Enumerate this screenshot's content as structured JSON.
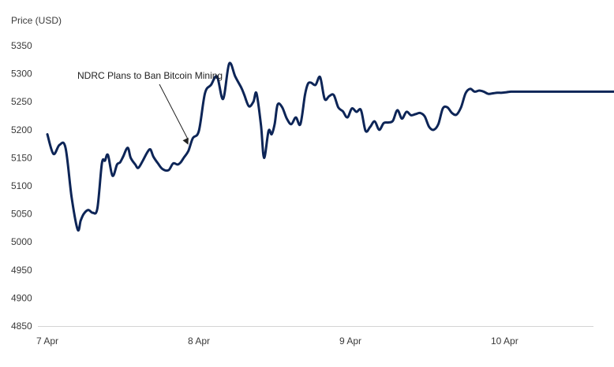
{
  "chart_data": {
    "type": "line",
    "title": "",
    "ylabel": "Price (USD)",
    "xlabel": "",
    "ylim": [
      4850,
      5350
    ],
    "yticks": [
      4850,
      4900,
      4950,
      5000,
      5050,
      5100,
      5150,
      5200,
      5250,
      5300,
      5350
    ],
    "xlim": [
      0,
      3.93
    ],
    "xtick_labels": [
      {
        "label": "7 Apr",
        "day": 0
      },
      {
        "label": "8 Apr",
        "day": 1
      },
      {
        "label": "9 Apr",
        "day": 2
      },
      {
        "label": "10 Apr",
        "day": 3
      }
    ],
    "grid": false,
    "line_color": "#0d2557",
    "annotations": [
      {
        "text": "NDRC Plans to Ban Bitcoin Mining",
        "x": 0.93,
        "y": 5165
      }
    ],
    "series": [
      {
        "x": [
          0.0,
          0.04,
          0.08,
          0.12,
          0.16,
          0.2,
          0.22,
          0.24,
          0.27,
          0.3,
          0.33,
          0.36,
          0.38,
          0.4,
          0.43,
          0.46,
          0.48,
          0.5,
          0.53,
          0.55,
          0.58,
          0.6,
          0.63,
          0.66,
          0.68,
          0.7,
          0.73,
          0.76,
          0.8,
          0.83,
          0.86,
          0.88,
          0.9,
          0.93,
          0.96,
          1.0,
          1.04,
          1.08,
          1.12,
          1.16,
          1.2,
          1.24,
          1.28,
          1.3,
          1.33,
          1.36,
          1.38,
          1.41,
          1.43,
          1.46,
          1.48,
          1.5,
          1.52,
          1.55,
          1.58,
          1.61,
          1.64,
          1.67,
          1.7,
          1.72,
          1.74,
          1.77,
          1.8,
          1.83,
          1.86,
          1.89,
          1.92,
          1.95,
          1.98,
          2.01,
          2.04,
          2.07,
          2.1,
          2.13,
          2.16,
          2.19,
          2.22,
          2.25,
          2.28,
          2.31,
          2.34,
          2.37,
          2.4,
          2.43,
          2.46,
          2.49,
          2.52,
          2.55,
          2.58,
          2.61,
          2.64,
          2.67,
          2.7,
          2.73,
          2.76,
          2.79,
          2.82,
          2.85,
          2.88,
          2.91,
          2.94,
          2.97,
          3.0,
          3.03,
          3.06,
          3.09,
          3.12,
          3.15,
          3.18,
          3.21,
          3.24,
          3.27,
          3.3,
          3.33,
          3.36,
          3.39,
          3.42,
          3.45,
          3.48,
          3.51,
          3.54,
          3.57,
          3.6,
          3.63,
          3.66,
          3.69,
          3.72,
          3.75,
          3.78,
          3.81,
          3.84,
          3.87,
          3.9,
          3.93
        ],
        "values": [
          5192,
          5157,
          5173,
          5168,
          5080,
          5022,
          5038,
          5050,
          5057,
          5052,
          5060,
          5140,
          5145,
          5155,
          5118,
          5138,
          5142,
          5152,
          5168,
          5150,
          5138,
          5132,
          5145,
          5160,
          5165,
          5152,
          5140,
          5130,
          5128,
          5140,
          5138,
          5142,
          5150,
          5162,
          5185,
          5198,
          5265,
          5280,
          5295,
          5255,
          5318,
          5295,
          5275,
          5262,
          5242,
          5250,
          5265,
          5208,
          5150,
          5198,
          5192,
          5210,
          5245,
          5240,
          5220,
          5210,
          5222,
          5210,
          5262,
          5282,
          5284,
          5280,
          5294,
          5255,
          5260,
          5262,
          5240,
          5233,
          5222,
          5238,
          5232,
          5235,
          5198,
          5205,
          5215,
          5200,
          5212,
          5213,
          5216,
          5235,
          5220,
          5232,
          5226,
          5228,
          5230,
          5224,
          5205,
          5200,
          5210,
          5238,
          5240,
          5230,
          5227,
          5240,
          5265,
          5273,
          5268,
          5270,
          5268,
          5264,
          5265,
          5266,
          5266,
          5267,
          5268,
          5268,
          5268,
          5268,
          5268,
          5268,
          5268,
          5268,
          5268,
          5268,
          5268,
          5268,
          5268,
          5268,
          5268,
          5268,
          5268,
          5268,
          5268,
          5268,
          5268,
          5268,
          5268,
          5268,
          5268,
          5268,
          5268,
          5268,
          5268,
          5268
        ]
      }
    ]
  }
}
